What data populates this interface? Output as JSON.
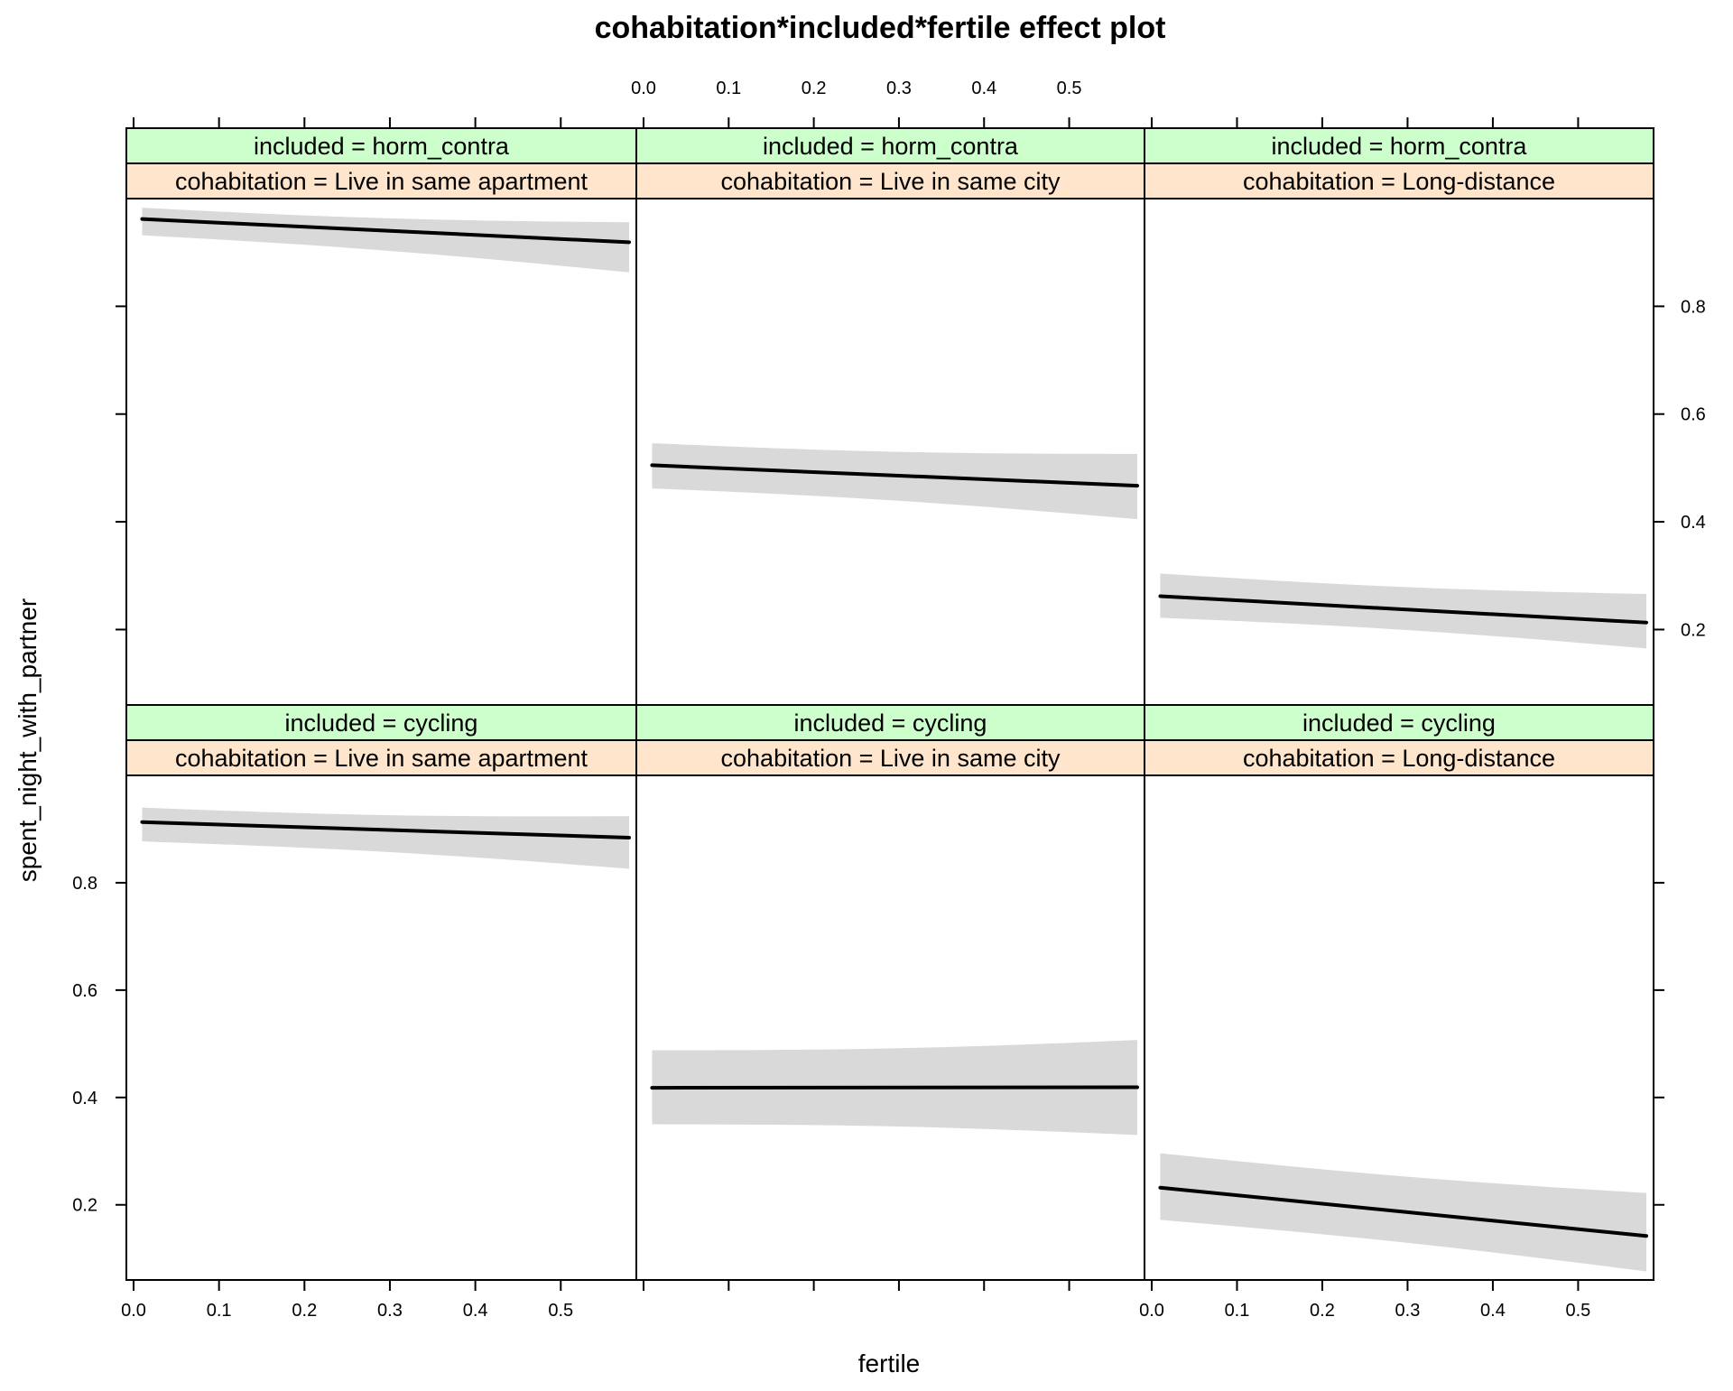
{
  "colors": {
    "strip_outer": "#ccffcc",
    "strip_inner": "#ffe5cc",
    "band": "#d9d9d9",
    "line": "#000000"
  },
  "chart_data": {
    "type": "line",
    "title": "cohabitation*included*fertile effect plot",
    "xlabel": "fertile",
    "ylabel": "spent_night_with_partner",
    "xlim": [
      0.0,
      0.58
    ],
    "ylim": [
      0.06,
      1.0
    ],
    "x_ticks": [
      0.0,
      0.1,
      0.2,
      0.3,
      0.4,
      0.5
    ],
    "x_tick_labels": [
      "0.0",
      "0.1",
      "0.2",
      "0.3",
      "0.4",
      "0.5"
    ],
    "y_ticks": [
      0.2,
      0.4,
      0.6,
      0.8
    ],
    "y_tick_labels": [
      "0.2",
      "0.4",
      "0.6",
      "0.8"
    ],
    "x_range_plotted": [
      0.01,
      0.58
    ],
    "panels": [
      {
        "included": "included = horm_contra",
        "cohabitation": "cohabitation = Live in same apartment",
        "row": 0,
        "col": 0,
        "fit": [
          0.962,
          0.919
        ],
        "lower": [
          0.932,
          0.863
        ],
        "upper": [
          0.983,
          0.956
        ]
      },
      {
        "included": "included = horm_contra",
        "cohabitation": "cohabitation = Live in same city",
        "row": 0,
        "col": 1,
        "fit": [
          0.505,
          0.467
        ],
        "lower": [
          0.462,
          0.405
        ],
        "upper": [
          0.546,
          0.526
        ]
      },
      {
        "included": "included = horm_contra",
        "cohabitation": "cohabitation = Long-distance",
        "row": 0,
        "col": 2,
        "fit": [
          0.262,
          0.213
        ],
        "lower": [
          0.222,
          0.165
        ],
        "upper": [
          0.304,
          0.266
        ]
      },
      {
        "included": "included = cycling",
        "cohabitation": "cohabitation = Live in same apartment",
        "row": 1,
        "col": 0,
        "fit": [
          0.913,
          0.884
        ],
        "lower": [
          0.877,
          0.826
        ],
        "upper": [
          0.94,
          0.924
        ]
      },
      {
        "included": "included = cycling",
        "cohabitation": "cohabitation = Live in same city",
        "row": 1,
        "col": 1,
        "fit": [
          0.418,
          0.419
        ],
        "lower": [
          0.35,
          0.33
        ],
        "upper": [
          0.488,
          0.507
        ]
      },
      {
        "included": "included = cycling",
        "cohabitation": "cohabitation = Long-distance",
        "row": 1,
        "col": 2,
        "fit": [
          0.232,
          0.142
        ],
        "lower": [
          0.172,
          0.076
        ],
        "upper": [
          0.296,
          0.222
        ]
      }
    ]
  }
}
